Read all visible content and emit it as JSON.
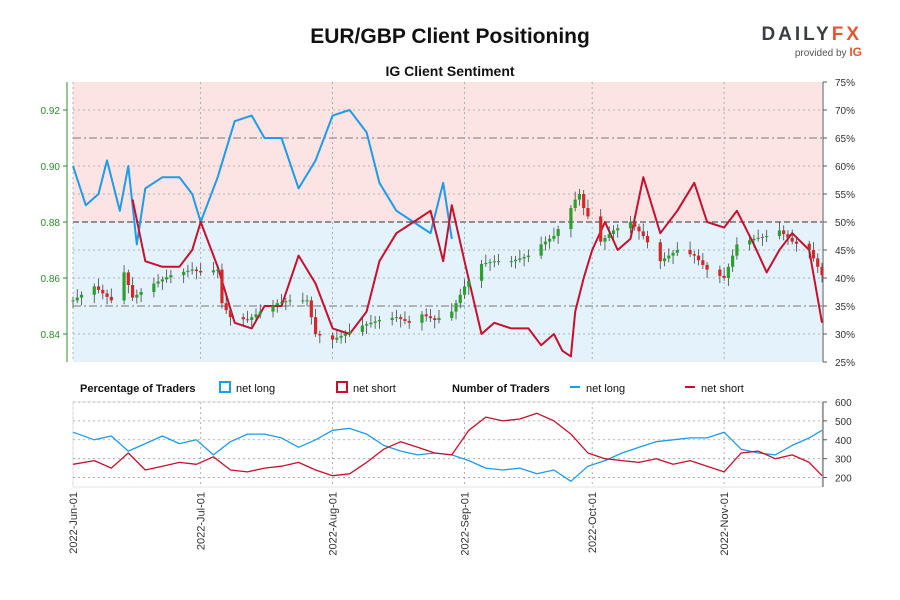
{
  "title": "EUR/GBP Client Positioning",
  "subtitle": "IG Client Sentiment",
  "brand": {
    "name_a": "DAILY",
    "name_b": "FX",
    "provided_by": "provided by",
    "ig": "IG"
  },
  "legend": {
    "pct_heading": "Percentage of Traders",
    "num_heading": "Number of Traders",
    "net_long": "net long",
    "net_short": "net short"
  },
  "colors": {
    "long": "#1e9be9",
    "short": "#c8102e",
    "candle_up": "#2ca02c",
    "candle_down": "#d62728",
    "bg_long": "#e3f2fb",
    "bg_short": "#fce4e4",
    "price_axis": "#2c8c2c"
  },
  "chart_data": [
    {
      "type": "candlestick",
      "name": "price",
      "ylim": [
        0.83,
        0.93
      ],
      "yticks": [
        "0.84",
        "0.86",
        "0.88",
        "0.90",
        "0.92"
      ],
      "xticks": [
        "2022-Jun-01",
        "2022-Jul-01",
        "2022-Aug-01",
        "2022-Sep-01",
        "2022-Oct-01",
        "2022-Nov-01"
      ],
      "x_start": "2022-06-01",
      "x_end": "2022-11-24",
      "close_points": [
        [
          "2022-06-01",
          0.852
        ],
        [
          "2022-06-06",
          0.857
        ],
        [
          "2022-06-10",
          0.852
        ],
        [
          "2022-06-13",
          0.862
        ],
        [
          "2022-06-15",
          0.853
        ],
        [
          "2022-06-20",
          0.858
        ],
        [
          "2022-06-24",
          0.861
        ],
        [
          "2022-06-29",
          0.863
        ],
        [
          "2022-07-01",
          0.862
        ],
        [
          "2022-07-05",
          0.863
        ],
        [
          "2022-07-06",
          0.851
        ],
        [
          "2022-07-08",
          0.846
        ],
        [
          "2022-07-12",
          0.845
        ],
        [
          "2022-07-15",
          0.848
        ],
        [
          "2022-07-19",
          0.851
        ],
        [
          "2022-07-22",
          0.852
        ],
        [
          "2022-07-26",
          0.852
        ],
        [
          "2022-07-28",
          0.84
        ],
        [
          "2022-08-01",
          0.838
        ],
        [
          "2022-08-04",
          0.84
        ],
        [
          "2022-08-08",
          0.843
        ],
        [
          "2022-08-12",
          0.845
        ],
        [
          "2022-08-16",
          0.846
        ],
        [
          "2022-08-19",
          0.844
        ],
        [
          "2022-08-22",
          0.847
        ],
        [
          "2022-08-25",
          0.845
        ],
        [
          "2022-08-29",
          0.848
        ],
        [
          "2022-09-01",
          0.857
        ],
        [
          "2022-09-05",
          0.865
        ],
        [
          "2022-09-08",
          0.866
        ],
        [
          "2022-09-12",
          0.866
        ],
        [
          "2022-09-16",
          0.868
        ],
        [
          "2022-09-19",
          0.872
        ],
        [
          "2022-09-22",
          0.875
        ],
        [
          "2022-09-26",
          0.885
        ],
        [
          "2022-09-27",
          0.888
        ],
        [
          "2022-09-28",
          0.89
        ],
        [
          "2022-09-29",
          0.885
        ],
        [
          "2022-10-03",
          0.873
        ],
        [
          "2022-10-06",
          0.877
        ],
        [
          "2022-10-10",
          0.88
        ],
        [
          "2022-10-13",
          0.875
        ],
        [
          "2022-10-17",
          0.866
        ],
        [
          "2022-10-21",
          0.87
        ],
        [
          "2022-10-25",
          0.868
        ],
        [
          "2022-10-28",
          0.863
        ],
        [
          "2022-11-01",
          0.86
        ],
        [
          "2022-11-04",
          0.872
        ],
        [
          "2022-11-08",
          0.874
        ],
        [
          "2022-11-11",
          0.875
        ],
        [
          "2022-11-14",
          0.877
        ],
        [
          "2022-11-17",
          0.873
        ],
        [
          "2022-11-21",
          0.87
        ],
        [
          "2022-11-24",
          0.861
        ]
      ]
    },
    {
      "type": "line",
      "name": "Percentage of Traders",
      "ylim": [
        25,
        75
      ],
      "yticks": [
        "25%",
        "30%",
        "35%",
        "40%",
        "45%",
        "50%",
        "55%",
        "60%",
        "65%",
        "70%",
        "75%"
      ],
      "series": [
        {
          "name": "net long",
          "points": [
            [
              "2022-06-01",
              60
            ],
            [
              "2022-06-04",
              53
            ],
            [
              "2022-06-07",
              55
            ],
            [
              "2022-06-09",
              61
            ],
            [
              "2022-06-12",
              52
            ],
            [
              "2022-06-14",
              60
            ],
            [
              "2022-06-16",
              46
            ],
            [
              "2022-06-18",
              56
            ],
            [
              "2022-06-22",
              58
            ],
            [
              "2022-06-26",
              58
            ],
            [
              "2022-06-29",
              55
            ],
            [
              "2022-07-01",
              50
            ],
            [
              "2022-07-05",
              58
            ],
            [
              "2022-07-09",
              68
            ],
            [
              "2022-07-13",
              69
            ],
            [
              "2022-07-16",
              65
            ],
            [
              "2022-07-20",
              65
            ],
            [
              "2022-07-24",
              56
            ],
            [
              "2022-07-28",
              61
            ],
            [
              "2022-08-01",
              69
            ],
            [
              "2022-08-05",
              70
            ],
            [
              "2022-08-09",
              66
            ],
            [
              "2022-08-12",
              57
            ],
            [
              "2022-08-16",
              52
            ],
            [
              "2022-08-20",
              50
            ],
            [
              "2022-08-24",
              48
            ],
            [
              "2022-08-27",
              57
            ],
            [
              "2022-08-29",
              47
            ]
          ]
        },
        {
          "name": "net short",
          "points": [
            [
              "2022-06-15",
              54
            ],
            [
              "2022-06-18",
              43
            ],
            [
              "2022-06-22",
              42
            ],
            [
              "2022-06-26",
              42
            ],
            [
              "2022-06-29",
              45
            ],
            [
              "2022-07-01",
              50
            ],
            [
              "2022-07-05",
              42
            ],
            [
              "2022-07-09",
              32
            ],
            [
              "2022-07-13",
              31
            ],
            [
              "2022-07-16",
              35
            ],
            [
              "2022-07-20",
              35
            ],
            [
              "2022-07-24",
              44
            ],
            [
              "2022-07-28",
              39
            ],
            [
              "2022-08-01",
              31
            ],
            [
              "2022-08-05",
              30
            ],
            [
              "2022-08-09",
              34
            ],
            [
              "2022-08-12",
              43
            ],
            [
              "2022-08-16",
              48
            ],
            [
              "2022-08-20",
              50
            ],
            [
              "2022-08-24",
              52
            ],
            [
              "2022-08-27",
              43
            ],
            [
              "2022-08-29",
              53
            ],
            [
              "2022-09-01",
              43
            ],
            [
              "2022-09-05",
              30
            ],
            [
              "2022-09-08",
              32
            ],
            [
              "2022-09-12",
              31
            ],
            [
              "2022-09-16",
              31
            ],
            [
              "2022-09-19",
              28
            ],
            [
              "2022-09-22",
              30
            ],
            [
              "2022-09-24",
              27
            ],
            [
              "2022-09-26",
              26
            ],
            [
              "2022-09-27",
              34
            ],
            [
              "2022-09-29",
              40
            ],
            [
              "2022-10-01",
              45
            ],
            [
              "2022-10-04",
              50
            ],
            [
              "2022-10-07",
              45
            ],
            [
              "2022-10-10",
              47
            ],
            [
              "2022-10-13",
              58
            ],
            [
              "2022-10-17",
              48
            ],
            [
              "2022-10-21",
              52
            ],
            [
              "2022-10-25",
              57
            ],
            [
              "2022-10-28",
              50
            ],
            [
              "2022-11-01",
              49
            ],
            [
              "2022-11-04",
              52
            ],
            [
              "2022-11-08",
              46
            ],
            [
              "2022-11-11",
              41
            ],
            [
              "2022-11-14",
              45
            ],
            [
              "2022-11-17",
              48
            ],
            [
              "2022-11-21",
              45
            ],
            [
              "2022-11-24",
              32
            ]
          ]
        }
      ]
    },
    {
      "type": "line",
      "name": "Number of Traders",
      "ylim": [
        150,
        600
      ],
      "yticks": [
        "200",
        "300",
        "400",
        "500",
        "600"
      ],
      "series": [
        {
          "name": "net long",
          "points": [
            [
              "2022-06-01",
              440
            ],
            [
              "2022-06-06",
              400
            ],
            [
              "2022-06-10",
              420
            ],
            [
              "2022-06-14",
              340
            ],
            [
              "2022-06-18",
              380
            ],
            [
              "2022-06-22",
              420
            ],
            [
              "2022-06-26",
              380
            ],
            [
              "2022-06-30",
              400
            ],
            [
              "2022-07-04",
              320
            ],
            [
              "2022-07-08",
              390
            ],
            [
              "2022-07-12",
              430
            ],
            [
              "2022-07-16",
              430
            ],
            [
              "2022-07-20",
              410
            ],
            [
              "2022-07-24",
              360
            ],
            [
              "2022-07-28",
              400
            ],
            [
              "2022-08-01",
              450
            ],
            [
              "2022-08-05",
              460
            ],
            [
              "2022-08-09",
              430
            ],
            [
              "2022-08-13",
              370
            ],
            [
              "2022-08-17",
              340
            ],
            [
              "2022-08-21",
              320
            ],
            [
              "2022-08-25",
              330
            ],
            [
              "2022-08-29",
              320
            ],
            [
              "2022-09-02",
              290
            ],
            [
              "2022-09-06",
              250
            ],
            [
              "2022-09-10",
              240
            ],
            [
              "2022-09-14",
              250
            ],
            [
              "2022-09-18",
              220
            ],
            [
              "2022-09-22",
              240
            ],
            [
              "2022-09-26",
              180
            ],
            [
              "2022-09-30",
              260
            ],
            [
              "2022-10-04",
              290
            ],
            [
              "2022-10-08",
              330
            ],
            [
              "2022-10-12",
              360
            ],
            [
              "2022-10-16",
              390
            ],
            [
              "2022-10-20",
              400
            ],
            [
              "2022-10-24",
              410
            ],
            [
              "2022-10-28",
              410
            ],
            [
              "2022-11-01",
              440
            ],
            [
              "2022-11-05",
              350
            ],
            [
              "2022-11-09",
              330
            ],
            [
              "2022-11-13",
              320
            ],
            [
              "2022-11-17",
              370
            ],
            [
              "2022-11-21",
              410
            ],
            [
              "2022-11-24",
              450
            ]
          ]
        },
        {
          "name": "net short",
          "points": [
            [
              "2022-06-01",
              270
            ],
            [
              "2022-06-06",
              290
            ],
            [
              "2022-06-10",
              250
            ],
            [
              "2022-06-14",
              330
            ],
            [
              "2022-06-18",
              240
            ],
            [
              "2022-06-22",
              260
            ],
            [
              "2022-06-26",
              280
            ],
            [
              "2022-06-30",
              270
            ],
            [
              "2022-07-04",
              310
            ],
            [
              "2022-07-08",
              240
            ],
            [
              "2022-07-12",
              230
            ],
            [
              "2022-07-16",
              250
            ],
            [
              "2022-07-20",
              260
            ],
            [
              "2022-07-24",
              280
            ],
            [
              "2022-07-28",
              240
            ],
            [
              "2022-08-01",
              210
            ],
            [
              "2022-08-05",
              220
            ],
            [
              "2022-08-09",
              280
            ],
            [
              "2022-08-13",
              350
            ],
            [
              "2022-08-17",
              390
            ],
            [
              "2022-08-21",
              360
            ],
            [
              "2022-08-25",
              330
            ],
            [
              "2022-08-29",
              320
            ],
            [
              "2022-09-02",
              450
            ],
            [
              "2022-09-06",
              520
            ],
            [
              "2022-09-10",
              500
            ],
            [
              "2022-09-14",
              510
            ],
            [
              "2022-09-18",
              540
            ],
            [
              "2022-09-22",
              500
            ],
            [
              "2022-09-26",
              430
            ],
            [
              "2022-09-30",
              330
            ],
            [
              "2022-10-04",
              300
            ],
            [
              "2022-10-08",
              290
            ],
            [
              "2022-10-12",
              280
            ],
            [
              "2022-10-16",
              300
            ],
            [
              "2022-10-20",
              270
            ],
            [
              "2022-10-24",
              290
            ],
            [
              "2022-10-28",
              260
            ],
            [
              "2022-11-01",
              230
            ],
            [
              "2022-11-05",
              330
            ],
            [
              "2022-11-09",
              340
            ],
            [
              "2022-11-13",
              300
            ],
            [
              "2022-11-17",
              320
            ],
            [
              "2022-11-21",
              280
            ],
            [
              "2022-11-24",
              210
            ]
          ]
        }
      ]
    }
  ]
}
